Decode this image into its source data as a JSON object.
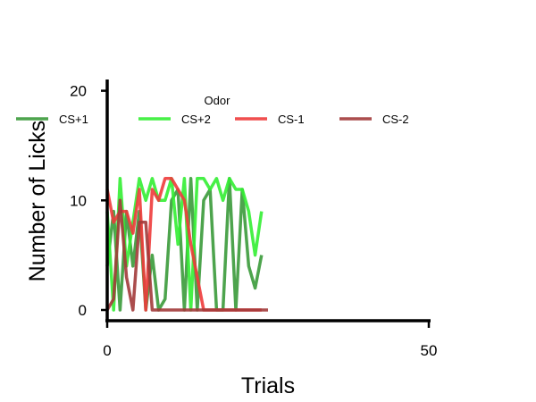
{
  "chart_data": {
    "type": "line",
    "title": "",
    "xlabel": "Trials",
    "ylabel": "Number of Licks",
    "xlim": [
      0,
      50
    ],
    "ylim": [
      -1,
      21
    ],
    "xticks": [
      0,
      50
    ],
    "yticks": [
      0,
      10,
      20
    ],
    "grid": false,
    "legend": {
      "title": "Odor",
      "placement": "top",
      "ncol": 4
    },
    "x": [
      0,
      1,
      2,
      3,
      4,
      5,
      6,
      7,
      8,
      9,
      10,
      11,
      12,
      13,
      14,
      15,
      16,
      17,
      18,
      19,
      20,
      21,
      22,
      23,
      24,
      25
    ],
    "series": [
      {
        "name": "CS+1",
        "color": "#3a9a3a",
        "values": [
          4,
          9,
          0,
          9,
          4,
          9,
          0,
          5,
          0,
          1,
          10,
          11,
          0,
          12,
          0,
          10,
          11,
          0,
          0,
          12,
          0,
          11,
          4,
          2,
          5,
          null
        ]
      },
      {
        "name": "CS+2",
        "color": "#33ee33",
        "values": [
          9,
          0,
          12,
          4,
          8,
          12,
          10,
          12,
          10,
          10,
          12,
          6,
          12,
          0,
          12,
          12,
          11,
          12,
          10,
          12,
          11,
          11,
          9,
          5,
          9,
          null
        ]
      },
      {
        "name": "CS-1",
        "color": "#ee3b3b",
        "values": [
          11,
          8,
          9,
          9,
          7,
          11,
          0,
          11,
          10,
          12,
          12,
          11,
          10,
          6,
          3,
          0,
          0,
          0,
          0,
          0,
          0,
          0,
          0,
          0,
          0,
          null
        ]
      },
      {
        "name": "CS-2",
        "color": "#a23a3a",
        "values": [
          0,
          1,
          10,
          3,
          0,
          8,
          8,
          0,
          0,
          0,
          0,
          0,
          0,
          0,
          0,
          0,
          0,
          0,
          0,
          0,
          0,
          0,
          0,
          0,
          0,
          0
        ]
      }
    ]
  }
}
